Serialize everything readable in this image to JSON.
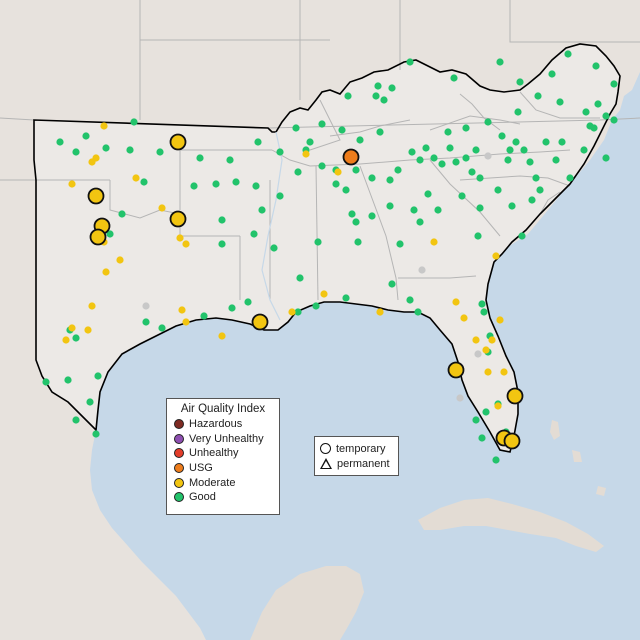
{
  "legend_aqi": {
    "title": "Air Quality Index",
    "items": [
      {
        "label": "Hazardous",
        "color": "#7e2a22"
      },
      {
        "label": "Very Unhealthy",
        "color": "#8e4fb1"
      },
      {
        "label": "Unhealthy",
        "color": "#e33d2a"
      },
      {
        "label": "USG",
        "color": "#ee7d1c"
      },
      {
        "label": "Moderate",
        "color": "#f2c511"
      },
      {
        "label": "Good",
        "color": "#22c36b"
      }
    ]
  },
  "legend_type": {
    "items": [
      {
        "label": "temporary",
        "symbol": "circle"
      },
      {
        "label": "permanent",
        "symbol": "triangle"
      }
    ]
  },
  "colors": {
    "water": "#c6d8e8",
    "land": "#e9e5e1",
    "outside_land": "#e3dcd4",
    "state_border": "#b5b5b5",
    "region_border": "#000000",
    "nodata": "#c8c8c8"
  }
}
